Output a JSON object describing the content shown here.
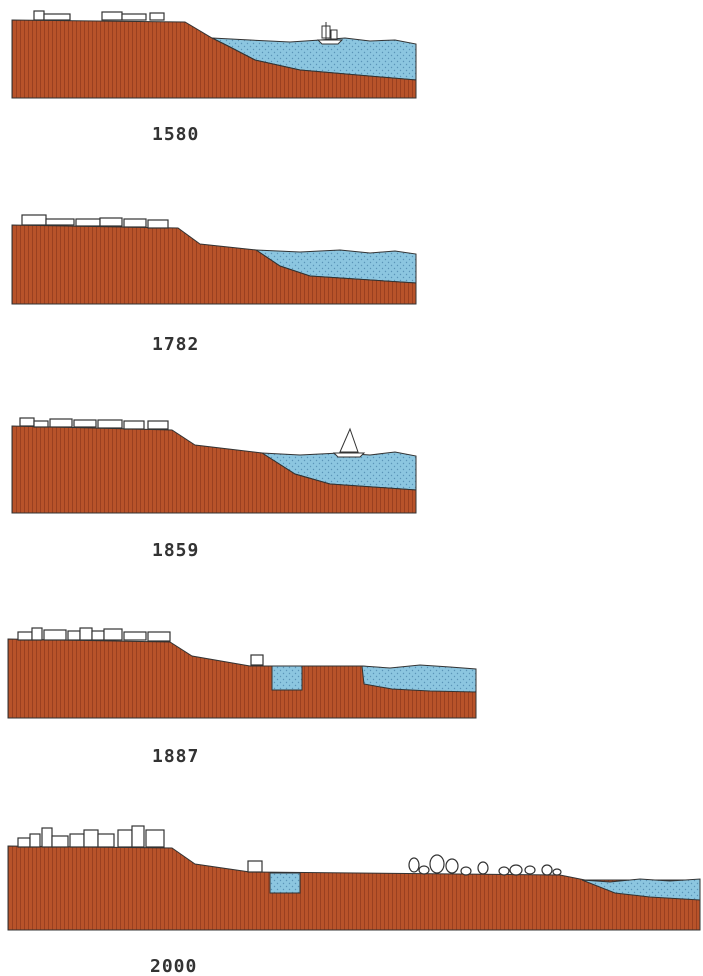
{
  "title": "",
  "colors": {
    "land": "#b8532a",
    "land_stripe": "#9a4020",
    "water": "#8cc6e0",
    "water_dot": "#5a94b8",
    "outline": "#333333",
    "building_fill": "#ffffff"
  },
  "panels": [
    {
      "year": "1580",
      "features": [
        "buildings",
        "sailing-ship"
      ]
    },
    {
      "year": "1782",
      "features": [
        "buildings"
      ]
    },
    {
      "year": "1859",
      "features": [
        "buildings",
        "sailboat"
      ]
    },
    {
      "year": "1887",
      "features": [
        "buildings",
        "dock-basin",
        "small-building"
      ]
    },
    {
      "year": "2000",
      "features": [
        "buildings",
        "dock-basin",
        "small-building",
        "trees"
      ]
    }
  ]
}
